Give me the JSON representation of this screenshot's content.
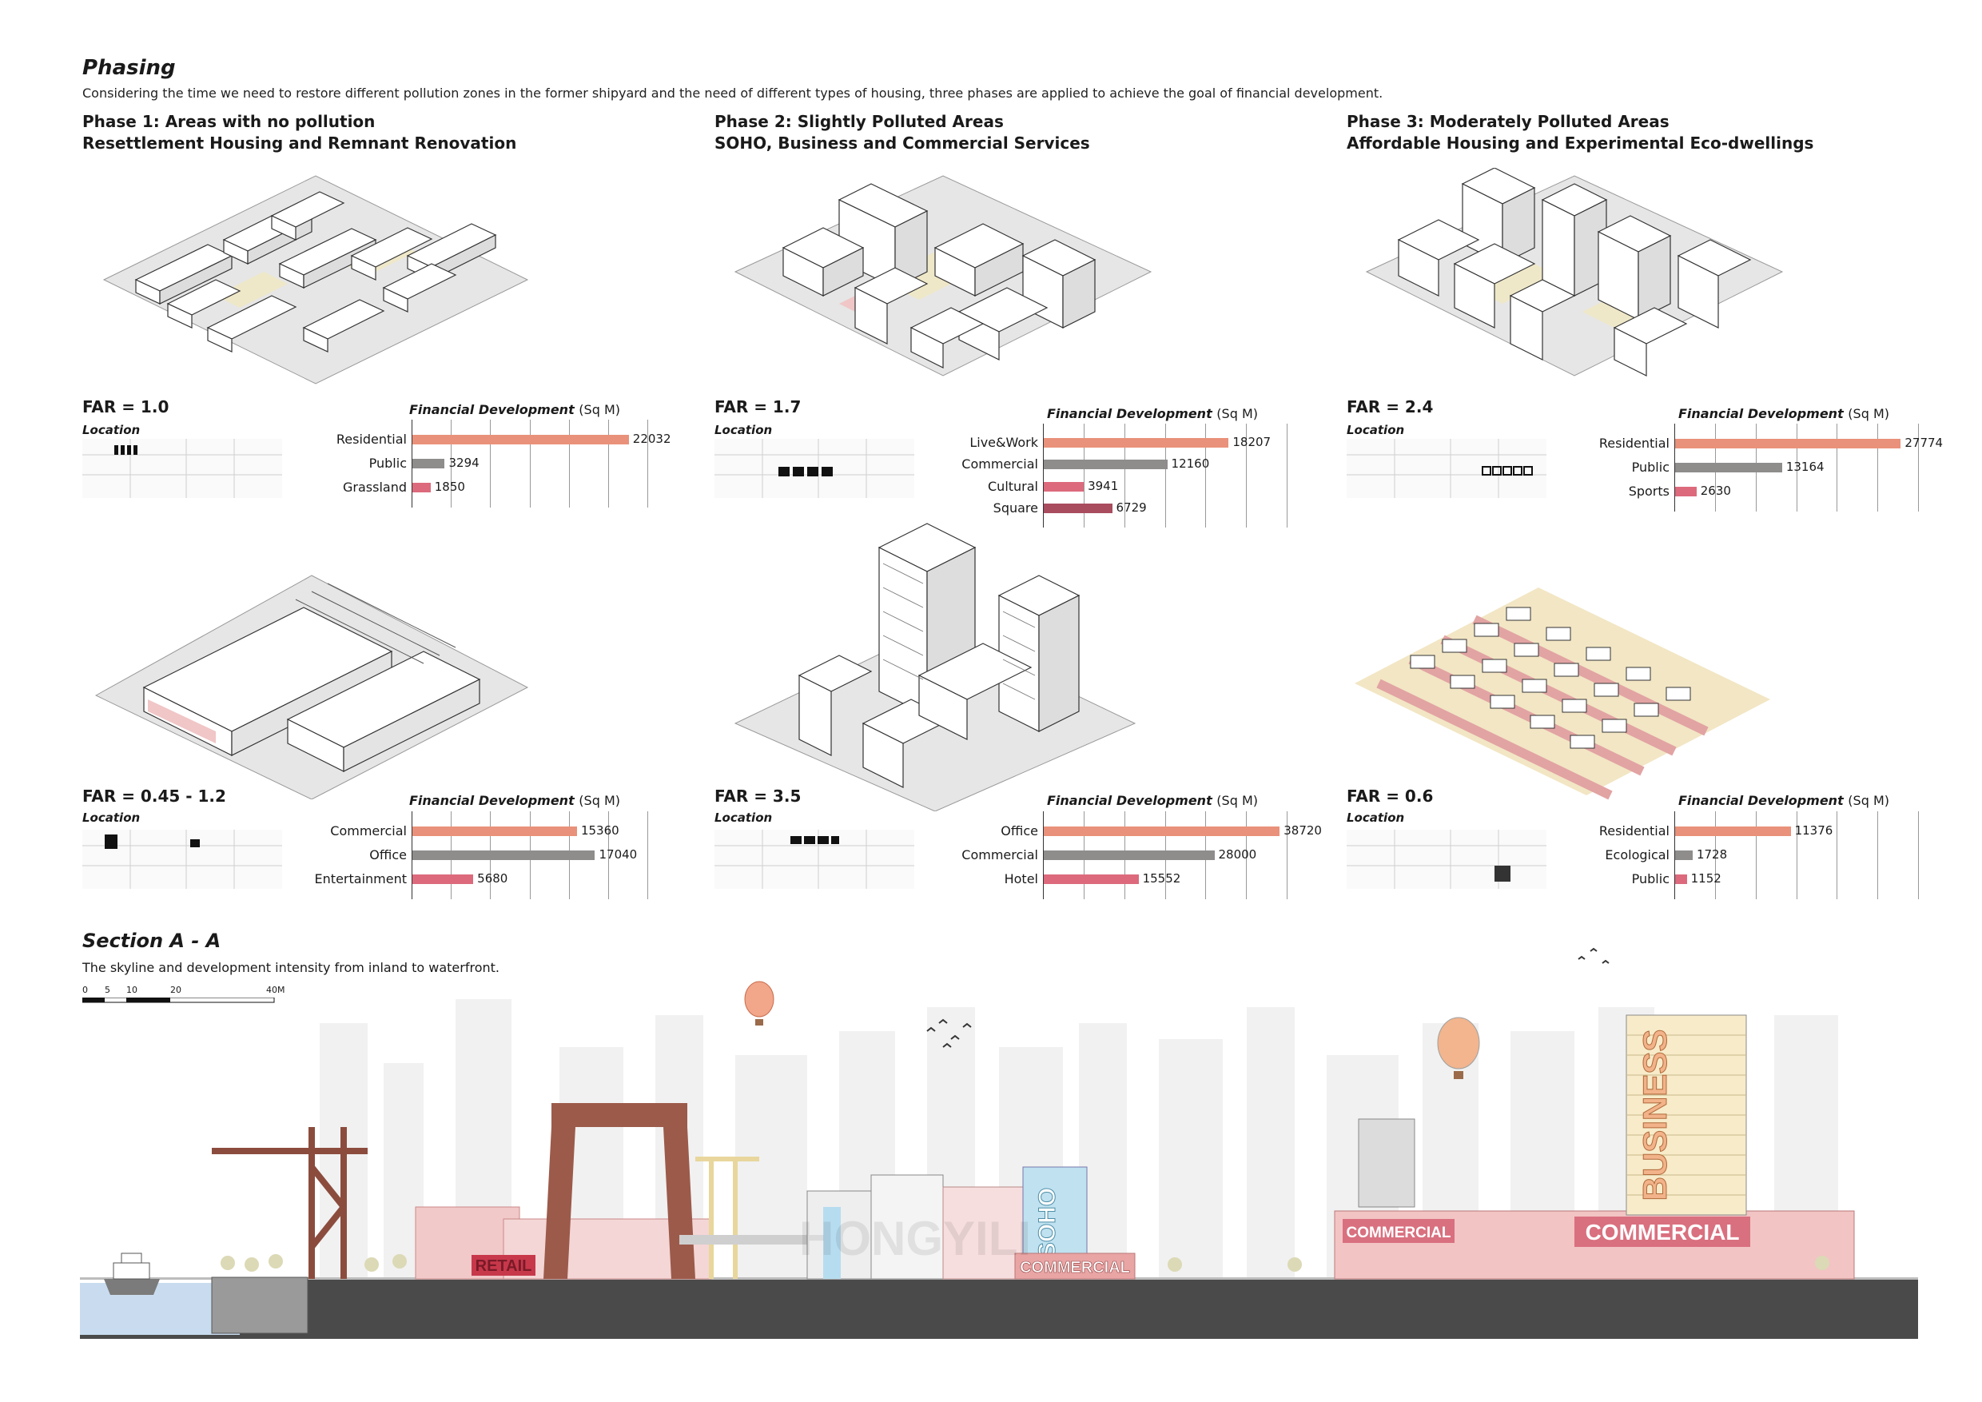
{
  "header": {
    "title": "Phasing",
    "intro": "Considering the time we need to restore different pollution zones in the former shipyard and the need of different types of housing, three phases are applied to achieve the goal of financial development."
  },
  "phases": [
    {
      "heading": "Phase  1: Areas with no pollution",
      "subheading": "Resettlement Housing and Remnant Renovation"
    },
    {
      "heading": "Phase  2: Slightly Polluted Areas",
      "subheading": "SOHO, Business and Commercial Services"
    },
    {
      "heading": "Phase  3: Moderately Polluted Areas",
      "subheading": "Affordable Housing and Experimental Eco-dwellings"
    }
  ],
  "labels": {
    "location": "Location",
    "fd_title": "Financial Development",
    "fd_unit": "(Sq M)"
  },
  "colors": {
    "salmon": "#e9917a",
    "grey": "#8f8c8c",
    "pink": "#dc6a7c",
    "maroon": "#a94c5e",
    "ground": "#4a4a4a",
    "water": "#c9dcef"
  },
  "chart_data": [
    {
      "type": "bar",
      "orientation": "horizontal",
      "far": "FAR = 1.0",
      "title": "Financial Development",
      "unit": "(Sq M)",
      "categories": [
        "Residential",
        "Public",
        "Grassland"
      ],
      "values": [
        22032,
        3294,
        1850
      ],
      "xlim": [
        0,
        24000
      ]
    },
    {
      "type": "bar",
      "orientation": "horizontal",
      "far": "FAR = 1.7",
      "title": "Financial Development",
      "unit": "(Sq M)",
      "categories": [
        "Live&Work",
        "Commercial",
        "Cultural",
        "Square"
      ],
      "values": [
        18207,
        12160,
        3941,
        6729
      ],
      "xlim": [
        0,
        24000
      ]
    },
    {
      "type": "bar",
      "orientation": "horizontal",
      "far": "FAR = 2.4",
      "title": "Financial Development",
      "unit": "(Sq M)",
      "categories": [
        "Residential",
        "Public",
        "Sports"
      ],
      "values": [
        27774,
        13164,
        2630
      ],
      "xlim": [
        0,
        30000
      ]
    },
    {
      "type": "bar",
      "orientation": "horizontal",
      "far": "FAR = 0.45 - 1.2",
      "title": "Financial Development",
      "unit": "(Sq M)",
      "categories": [
        "Commercial",
        "Office",
        "Entertainment"
      ],
      "values": [
        15360,
        17040,
        5680
      ],
      "xlim": [
        0,
        22000
      ]
    },
    {
      "type": "bar",
      "orientation": "horizontal",
      "far": "FAR = 3.5",
      "title": "Financial Development",
      "unit": "(Sq M)",
      "categories": [
        "Office",
        "Commercial",
        "Hotel"
      ],
      "values": [
        38720,
        28000,
        15552
      ],
      "xlim": [
        0,
        40000
      ]
    },
    {
      "type": "bar",
      "orientation": "horizontal",
      "far": "FAR = 0.6",
      "title": "Financial Development",
      "unit": "(Sq M)",
      "categories": [
        "Residential",
        "Ecological",
        "Public"
      ],
      "values": [
        11376,
        1728,
        1152
      ],
      "xlim": [
        0,
        24000
      ]
    }
  ],
  "section": {
    "title": "Section A - A",
    "subtitle": "The skyline and development intensity from inland to waterfront.",
    "scale": [
      "0",
      "5",
      "10",
      "20",
      "40M"
    ],
    "signs": {
      "retail": "RETAIL",
      "soho": "SOHO",
      "commercial": "COMMERCIAL",
      "business": "BUSINESS"
    }
  },
  "watermark": "HONGYILI"
}
